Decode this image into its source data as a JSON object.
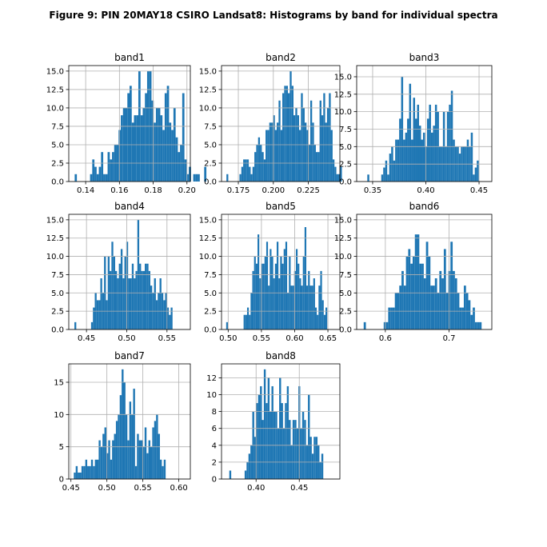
{
  "figure_title": "Figure 9: PIN 20MAY18 CSIRO Landsat8: Histograms by band for individual spectra",
  "bar_color": "#1f77b4",
  "chart_data": [
    {
      "type": "bar",
      "title": "band1",
      "bin_start": 0.1335,
      "bin_width": 0.0013,
      "counts": [
        1,
        0,
        0,
        0,
        0,
        0,
        0,
        1,
        3,
        2,
        1,
        2,
        4,
        1,
        1,
        4,
        3,
        4,
        5,
        5,
        7,
        9,
        10,
        10,
        12,
        13,
        8,
        9,
        9,
        15,
        9,
        10,
        12,
        15,
        15,
        11,
        8,
        10,
        10,
        9,
        7,
        12,
        13,
        8,
        7,
        10,
        6,
        4,
        5,
        12,
        3,
        1,
        2,
        0,
        1,
        1,
        1,
        0,
        0,
        2
      ],
      "xlim": [
        0.13,
        0.202
      ],
      "ylim": [
        0,
        15.75
      ],
      "xticks": [
        0.14,
        0.16,
        0.18,
        0.2
      ],
      "xtick_labels": [
        "0.14",
        "0.16",
        "0.18",
        "0.20"
      ],
      "yticks": [
        0,
        2.5,
        5,
        7.5,
        10,
        12.5,
        15
      ],
      "ytick_labels": [
        "0.0",
        "2.5",
        "5.0",
        "7.5",
        "10.0",
        "12.5",
        "15.0"
      ]
    },
    {
      "type": "bar",
      "title": "band2",
      "bin_start": 0.1665,
      "bin_width": 0.00133,
      "counts": [
        1,
        0,
        0,
        0,
        0,
        0,
        0,
        1,
        2,
        3,
        3,
        3,
        2,
        1,
        2,
        4,
        5,
        6,
        5,
        4,
        3,
        7,
        7,
        8,
        8,
        9,
        7,
        8,
        11,
        7,
        12,
        13,
        13,
        12,
        15,
        13,
        9,
        10,
        9,
        7,
        12,
        10,
        8,
        7,
        5,
        11,
        8,
        5,
        4,
        4,
        11,
        9,
        12,
        8,
        10,
        12,
        7,
        3,
        2,
        1,
        1,
        2
      ],
      "xlim": [
        0.163,
        0.2475
      ],
      "ylim": [
        0,
        15.75
      ],
      "xticks": [
        0.175,
        0.2,
        0.225
      ],
      "xtick_labels": [
        "0.175",
        "0.200",
        "0.225"
      ],
      "yticks": [
        0,
        2.5,
        5,
        7.5,
        10,
        12.5,
        15
      ],
      "ytick_labels": [
        "0.0",
        "2.5",
        "5.0",
        "7.5",
        "10.0",
        "12.5",
        "15.0"
      ]
    },
    {
      "type": "bar",
      "title": "band3",
      "bin_start": 0.345,
      "bin_width": 0.00187,
      "counts": [
        1,
        0,
        0,
        0,
        0,
        0,
        0,
        1,
        2,
        3,
        1,
        4,
        5,
        3,
        6,
        6,
        9,
        15,
        6,
        7,
        9,
        14,
        6,
        12,
        9,
        11,
        8,
        6,
        7,
        5,
        9,
        11,
        7,
        8,
        11,
        10,
        5,
        5,
        10,
        5,
        10,
        11,
        13,
        6,
        5,
        5,
        4,
        5,
        5,
        5,
        6,
        5,
        7,
        1,
        2,
        3
      ],
      "xlim": [
        0.335,
        0.462
      ],
      "ylim": [
        0,
        16.6
      ],
      "xticks": [
        0.35,
        0.4,
        0.45
      ],
      "xtick_labels": [
        "0.35",
        "0.40",
        "0.45"
      ],
      "yticks": [
        0,
        2.5,
        5,
        7.5,
        10,
        12.5,
        15
      ],
      "ytick_labels": [
        "0.0",
        "2.5",
        "5.0",
        "7.5",
        "10.0",
        "12.5",
        "15.0"
      ]
    },
    {
      "type": "bar",
      "title": "band4",
      "bin_start": 0.435,
      "bin_width": 0.0023,
      "counts": [
        1,
        0,
        0,
        0,
        0,
        0,
        0,
        0,
        0,
        1,
        3,
        5,
        4,
        4,
        7,
        5,
        10,
        4,
        10,
        8,
        12,
        10,
        8,
        7,
        9,
        11,
        7,
        10,
        12,
        7,
        7,
        9,
        7,
        8,
        15,
        9,
        8,
        8,
        9,
        9,
        8,
        6,
        5,
        7,
        4,
        5,
        7,
        5,
        4,
        5,
        3,
        2,
        3
      ],
      "xlim": [
        0.428,
        0.579
      ],
      "ylim": [
        0,
        15.75
      ],
      "xticks": [
        0.45,
        0.5,
        0.55
      ],
      "xtick_labels": [
        "0.45",
        "0.50",
        "0.55"
      ],
      "yticks": [
        0,
        2.5,
        5,
        7.5,
        10,
        12.5,
        15
      ],
      "ytick_labels": [
        "0.0",
        "2.5",
        "5.0",
        "7.5",
        "10.0",
        "12.5",
        "15.0"
      ]
    },
    {
      "type": "bar",
      "title": "band5",
      "bin_start": 0.497,
      "bin_width": 0.00262,
      "counts": [
        1,
        0,
        0,
        0,
        0,
        0,
        0,
        0,
        0,
        0,
        2,
        2,
        3,
        2,
        5,
        8,
        10,
        9,
        13,
        7,
        9,
        9,
        10,
        12,
        6,
        11,
        10,
        7,
        9,
        12,
        7,
        10,
        9,
        11,
        12,
        5,
        10,
        6,
        6,
        8,
        11,
        9,
        7,
        6,
        10,
        14,
        6,
        8,
        6,
        6,
        7,
        3,
        2,
        6,
        8,
        4,
        2,
        3
      ],
      "xlim": [
        0.49,
        0.668
      ],
      "ylim": [
        0,
        15.75
      ],
      "xticks": [
        0.5,
        0.55,
        0.6,
        0.65
      ],
      "xtick_labels": [
        "0.50",
        "0.55",
        "0.60",
        "0.65"
      ],
      "yticks": [
        0,
        2.5,
        5,
        7.5,
        10,
        12.5,
        15
      ],
      "ytick_labels": [
        "0.0",
        "2.5",
        "5.0",
        "7.5",
        "10.0",
        "12.5",
        "15.0"
      ]
    },
    {
      "type": "bar",
      "title": "band6",
      "bin_start": 0.566,
      "bin_width": 0.00349,
      "counts": [
        1,
        0,
        0,
        0,
        0,
        0,
        0,
        0,
        0,
        1,
        1,
        3,
        3,
        3,
        5,
        5,
        6,
        8,
        6,
        10,
        11,
        9,
        10,
        13,
        13,
        9,
        9,
        7,
        12,
        10,
        6,
        6,
        7,
        5,
        8,
        7,
        11,
        5,
        8,
        12,
        8,
        7,
        5,
        3,
        3,
        6,
        5,
        4,
        2,
        3,
        1,
        1,
        1,
        0,
        0
      ],
      "xlim": [
        0.555,
        0.767
      ],
      "ylim": [
        0,
        15.75
      ],
      "xticks": [
        0.6,
        0.7
      ],
      "xtick_labels": [
        "0.6",
        "0.7"
      ],
      "yticks": [
        0,
        2.5,
        5,
        7.5,
        10,
        12.5,
        15
      ],
      "ytick_labels": [
        "0.0",
        "2.5",
        "5.0",
        "7.5",
        "10.0",
        "12.5",
        "15.0"
      ]
    },
    {
      "type": "bar",
      "title": "band7",
      "bin_start": 0.454,
      "bin_width": 0.00266,
      "counts": [
        1,
        2,
        1,
        1,
        2,
        2,
        3,
        2,
        2,
        3,
        2,
        3,
        3,
        6,
        5,
        7,
        8,
        4,
        6,
        3,
        6,
        7,
        9,
        10,
        13,
        17,
        15,
        10,
        6,
        12,
        10,
        14,
        2,
        7,
        6,
        6,
        5,
        8,
        4,
        6,
        5,
        8,
        9,
        10,
        7,
        3,
        2,
        3
      ],
      "xlim": [
        0.447,
        0.616
      ],
      "ylim": [
        0,
        17.85
      ],
      "xticks": [
        0.45,
        0.5,
        0.55,
        0.6
      ],
      "xtick_labels": [
        "0.45",
        "0.50",
        "0.55",
        "0.60"
      ],
      "yticks": [
        0,
        5,
        10,
        15
      ],
      "ytick_labels": [
        "0",
        "5",
        "10",
        "15"
      ]
    },
    {
      "type": "bar",
      "title": "band8",
      "bin_start": 0.369,
      "bin_width": 0.00222,
      "counts": [
        1,
        0,
        0,
        0,
        0,
        0,
        0,
        0,
        1,
        2,
        3,
        4,
        8,
        5,
        9,
        10,
        11,
        7,
        13,
        9,
        12,
        8,
        11,
        8,
        8,
        6,
        12,
        9,
        6,
        9,
        11,
        7,
        4,
        7,
        7,
        6,
        11,
        6,
        8,
        7,
        4,
        10,
        5,
        3,
        5,
        5,
        4,
        2,
        3
      ],
      "xlim": [
        0.36,
        0.497
      ],
      "ylim": [
        0,
        13.65
      ],
      "xticks": [
        0.4,
        0.45
      ],
      "xtick_labels": [
        "0.40",
        "0.45"
      ],
      "yticks": [
        0,
        2,
        4,
        6,
        8,
        10,
        12
      ],
      "ytick_labels": [
        "0",
        "2",
        "4",
        "6",
        "8",
        "10",
        "12"
      ]
    }
  ]
}
